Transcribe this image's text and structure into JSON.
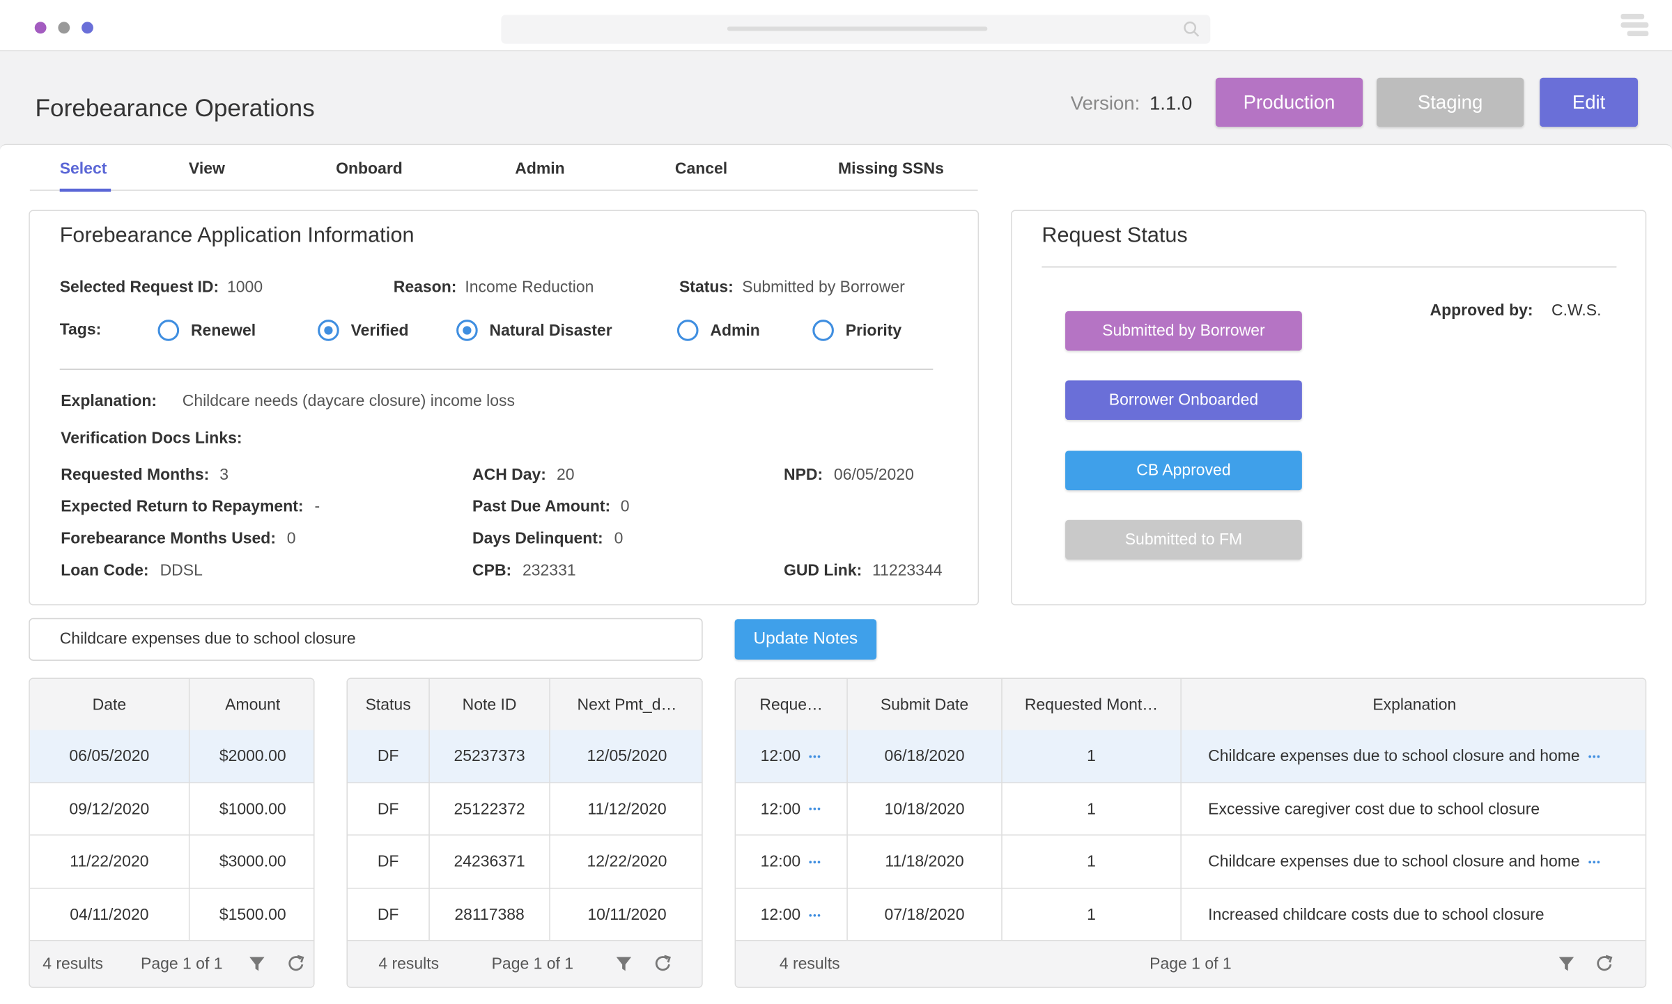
{
  "header": {
    "title": "Forebearance Operations",
    "version_label": "Version:",
    "version": "1.1.0",
    "buttons": [
      {
        "label": "Production",
        "color": "#b574c4"
      },
      {
        "label": "Staging",
        "color": "#bdbdbd"
      },
      {
        "label": "Edit",
        "color": "#6a6fd8"
      }
    ]
  },
  "tabs": [
    "Select",
    "View",
    "Onboard",
    "Admin",
    "Cancel",
    "Missing SSNs"
  ],
  "info": {
    "title": "Forebearance Application Information",
    "summary": [
      {
        "label": "Selected Request ID:",
        "value": "1000"
      },
      {
        "label": "Reason:",
        "value": "Income Reduction"
      },
      {
        "label": "Status:",
        "value": "Submitted by Borrower"
      }
    ],
    "tags": {
      "label": "Tags:",
      "options": [
        {
          "label": "Renewel",
          "checked": false
        },
        {
          "label": "Verified",
          "checked": true
        },
        {
          "label": "Natural Disaster",
          "checked": true
        },
        {
          "label": "Admin",
          "checked": false
        },
        {
          "label": "Priority",
          "checked": false
        }
      ]
    },
    "explanation": {
      "label": "Explanation:",
      "value": "Childcare needs (daycare closure) income loss"
    },
    "docs_label": "Verification Docs Links:",
    "details": [
      {
        "label": "Requested Months:",
        "value": "3"
      },
      {
        "label": "Expected Return to Repayment:",
        "value": "-"
      },
      {
        "label": "Forebearance Months Used:",
        "value": "0"
      },
      {
        "label": "Loan Code:",
        "value": "DDSL"
      },
      {
        "label": "ACH Day:",
        "value": "20"
      },
      {
        "label": "Past Due Amount:",
        "value": "0"
      },
      {
        "label": "Days Delinquent:",
        "value": "0"
      },
      {
        "label": "CPB:",
        "value": "232331"
      },
      {
        "label": "NPD:",
        "value": "06/05/2020"
      },
      {
        "label": "GUD Link:",
        "value": "11223344"
      }
    ]
  },
  "request_status": {
    "title": "Request Status",
    "steps": [
      {
        "label": "Submitted by Borrower",
        "color": "#b574c4"
      },
      {
        "label": "Borrower Onboarded",
        "color": "#6a6fd8"
      },
      {
        "label": "CB Approved",
        "color": "#3fa0ea"
      },
      {
        "label": "Submitted to FM",
        "color": "#c9c9c9"
      }
    ],
    "approved_label": "Approved by:",
    "approved_by": "C.W.S."
  },
  "notes": {
    "input": "Childcare expenses due to school closure",
    "button": "Update Notes"
  },
  "tables": [
    {
      "columns": [
        "Date",
        "Amount"
      ],
      "rows": [
        [
          "06/05/2020",
          "$2000.00"
        ],
        [
          "09/12/2020",
          "$1000.00"
        ],
        [
          "11/22/2020",
          "$3000.00"
        ],
        [
          "04/11/2020",
          "$1500.00"
        ]
      ],
      "results": "4 results",
      "page": "Page 1 of 1"
    },
    {
      "columns": [
        "Status",
        "Note ID",
        "Next Pmt_d…"
      ],
      "rows": [
        [
          "DF",
          "25237373",
          "12/05/2020"
        ],
        [
          "DF",
          "25122372",
          "11/12/2020"
        ],
        [
          "DF",
          "24236371",
          "12/22/2020"
        ],
        [
          "DF",
          "28117388",
          "10/11/2020"
        ]
      ],
      "results": "4 results",
      "page": "Page 1 of 1"
    },
    {
      "columns": [
        "Reque…",
        "Submit Date",
        "Requested Mont…",
        "Explanation"
      ],
      "rows": [
        [
          "12:00",
          "06/18/2020",
          "1",
          "Childcare expenses due to school closure and home"
        ],
        [
          "12:00",
          "10/18/2020",
          "1",
          "Excessive caregiver cost due to school closure"
        ],
        [
          "12:00",
          "11/18/2020",
          "1",
          "Childcare expenses due to school closure and home"
        ],
        [
          "12:00",
          "07/18/2020",
          "1",
          "Increased childcare costs due to school closure"
        ]
      ],
      "results": "4 results",
      "page": "Page 1 of 1"
    }
  ]
}
